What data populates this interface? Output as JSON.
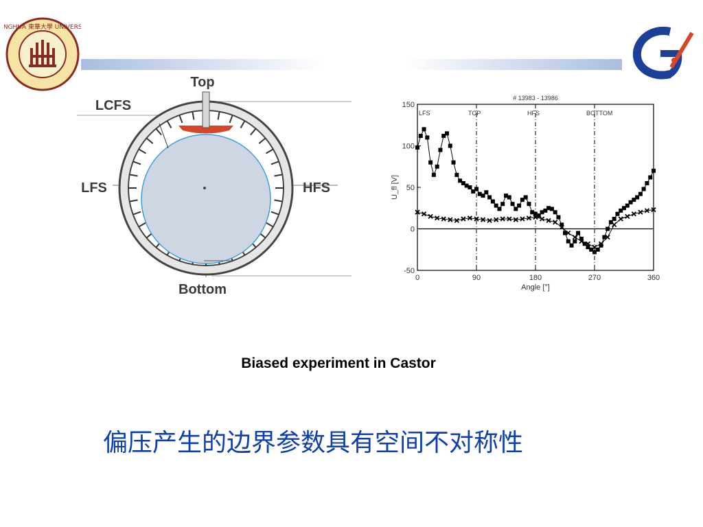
{
  "slide": {
    "caption": "Biased experiment in Castor",
    "chinese_text": "偏压产生的边界参数具有空间不对称性",
    "colors": {
      "header_bar": "#a9bde0",
      "cn_text": "#0d3fae",
      "plasma_fill": "#cfd6e3",
      "lcfs_line": "#3aa0d8",
      "limiter": "#d5462a"
    }
  },
  "logos": {
    "left_icon": "donghua-university-seal-icon",
    "left_text": "DONGHUA 東華大學 UNIVERSITY",
    "right_icon": "institute-logo-icon"
  },
  "diagram": {
    "labels": {
      "top": "Top",
      "bottom": "Bottom",
      "lfs": "LFS",
      "hfs": "HFS",
      "lcfs": "LCFS"
    }
  },
  "chart_data": {
    "type": "scatter",
    "title": "# 13983 - 13986",
    "xlabel": "Angle [°]",
    "ylabel": "U_fl [V]",
    "xlim": [
      0,
      360
    ],
    "ylim": [
      -50,
      150
    ],
    "xticks": [
      0,
      90,
      180,
      270,
      360
    ],
    "yticks": [
      -50,
      0,
      50,
      100,
      150
    ],
    "annotations": [
      {
        "text": "LFS",
        "x": 0
      },
      {
        "text": "TOP",
        "x": 90
      },
      {
        "text": "HFS",
        "x": 180
      },
      {
        "text": "BOTTOM",
        "x": 270
      }
    ],
    "reference_lines": {
      "vertical_x": [
        90,
        180,
        270
      ],
      "horizontal_y": 0
    },
    "series": [
      {
        "marker": "square",
        "x": [
          0,
          5,
          10,
          15,
          20,
          25,
          30,
          35,
          40,
          45,
          50,
          55,
          60,
          65,
          70,
          75,
          80,
          85,
          90,
          95,
          100,
          105,
          110,
          115,
          120,
          125,
          130,
          135,
          140,
          145,
          150,
          155,
          160,
          165,
          170,
          175,
          180,
          185,
          190,
          195,
          200,
          205,
          210,
          215,
          220,
          225,
          230,
          235,
          240,
          245,
          250,
          255,
          260,
          265,
          270,
          275,
          280,
          285,
          290,
          295,
          300,
          305,
          310,
          315,
          320,
          325,
          330,
          335,
          340,
          345,
          350,
          355,
          360
        ],
        "y": [
          98,
          112,
          120,
          110,
          80,
          65,
          75,
          95,
          112,
          115,
          100,
          80,
          65,
          58,
          55,
          52,
          50,
          45,
          48,
          42,
          40,
          44,
          38,
          33,
          28,
          24,
          30,
          40,
          38,
          30,
          24,
          28,
          35,
          38,
          30,
          20,
          18,
          16,
          20,
          22,
          25,
          24,
          20,
          14,
          5,
          -5,
          -15,
          -20,
          -15,
          -5,
          -12,
          -18,
          -22,
          -25,
          -28,
          -25,
          -20,
          -10,
          0,
          8,
          12,
          18,
          22,
          25,
          28,
          32,
          35,
          38,
          42,
          48,
          55,
          62,
          70
        ]
      },
      {
        "marker": "cross",
        "x": [
          0,
          10,
          20,
          30,
          40,
          50,
          60,
          70,
          80,
          90,
          100,
          110,
          120,
          130,
          140,
          150,
          160,
          170,
          180,
          190,
          200,
          210,
          220,
          230,
          240,
          250,
          260,
          270,
          280,
          290,
          300,
          310,
          320,
          330,
          340,
          350,
          360
        ],
        "y": [
          20,
          18,
          15,
          13,
          12,
          11,
          10,
          12,
          13,
          12,
          11,
          10,
          11,
          12,
          12,
          11,
          12,
          13,
          14,
          12,
          10,
          8,
          2,
          -5,
          -10,
          -15,
          -18,
          -22,
          -18,
          -10,
          5,
          12,
          15,
          18,
          20,
          22,
          23
        ]
      }
    ]
  }
}
